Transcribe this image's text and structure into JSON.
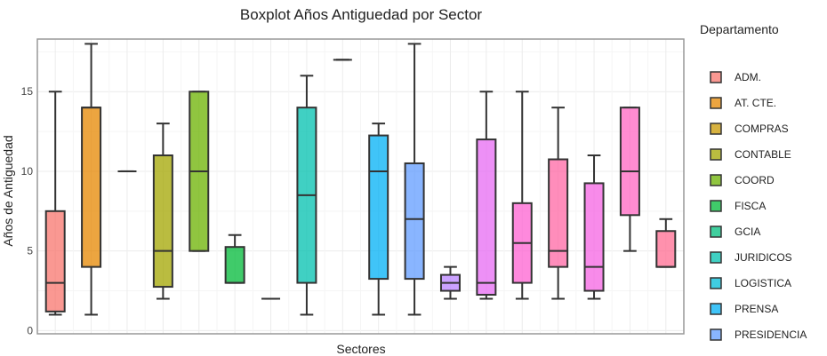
{
  "chart_data": {
    "type": "boxplot",
    "title": "Boxplot Años Antiguedad por Sector",
    "xlabel": "Sectores",
    "ylabel": "Años de Antiguedad",
    "ylim": [
      -0.2,
      18.3
    ],
    "yticks": [
      0,
      5,
      10,
      15
    ],
    "grid": true,
    "legend": {
      "title": "Departamento",
      "position": "right"
    },
    "series": [
      {
        "name": "ADM.",
        "color": "#F8766D",
        "min": 1,
        "q1": 1.2,
        "median": 3,
        "q3": 7.5,
        "max": 15
      },
      {
        "name": "AT. CTE.",
        "color": "#E58700",
        "min": 1,
        "q1": 4,
        "median": 14,
        "q3": 14,
        "max": 18
      },
      {
        "name": "COMPRAS",
        "color": "#C99800",
        "min": 10,
        "q1": 10,
        "median": 10,
        "q3": 10,
        "max": 10
      },
      {
        "name": "CONTABLE",
        "color": "#A3A500",
        "min": 2,
        "q1": 2.75,
        "median": 5,
        "q3": 11,
        "max": 13
      },
      {
        "name": "COORD",
        "color": "#6BB100",
        "min": 5,
        "q1": 5,
        "median": 10,
        "q3": 15,
        "max": 15
      },
      {
        "name": "FISCA",
        "color": "#00BA38",
        "min": 3,
        "q1": 3,
        "median": 3,
        "q3": 5.25,
        "max": 6
      },
      {
        "name": "GCIA",
        "color": "#00BF7D",
        "min": 2,
        "q1": 2,
        "median": 2,
        "q3": 2,
        "max": 2
      },
      {
        "name": "JURIDICOS",
        "color": "#00C0AF",
        "min": 1,
        "q1": 3,
        "median": 8.5,
        "q3": 14,
        "max": 16
      },
      {
        "name": "LOGISTICA",
        "color": "#00BCD8",
        "min": 17,
        "q1": 17,
        "median": 17,
        "q3": 17,
        "max": 17
      },
      {
        "name": "PRENSA",
        "color": "#00B0F6",
        "min": 1,
        "q1": 3.25,
        "median": 10,
        "q3": 12.25,
        "max": 13
      },
      {
        "name": "PRESIDENCIA",
        "color": "#619CFF",
        "min": 1,
        "q1": 3.25,
        "median": 7,
        "q3": 10.5,
        "max": 18
      },
      {
        "name": "",
        "color": "#B983FF",
        "min": 2,
        "q1": 2.5,
        "median": 3,
        "q3": 3.5,
        "max": 4
      },
      {
        "name": "",
        "color": "#E76BF3",
        "min": 2,
        "q1": 2.25,
        "median": 3,
        "q3": 12,
        "max": 15
      },
      {
        "name": "",
        "color": "#FD61D1",
        "min": 2,
        "q1": 3,
        "median": 5.5,
        "q3": 8,
        "max": 15
      },
      {
        "name": "",
        "color": "#FF67A4",
        "min": 2,
        "q1": 4,
        "median": 5,
        "q3": 10.75,
        "max": 14
      },
      {
        "name": "",
        "color": "#F564E3",
        "min": 2,
        "q1": 2.5,
        "median": 4,
        "q3": 9.25,
        "max": 11
      },
      {
        "name": "",
        "color": "#FF66C1",
        "min": 5,
        "q1": 7.25,
        "median": 10,
        "q3": 14,
        "max": 14
      },
      {
        "name": "",
        "color": "#FF6C91",
        "min": 4,
        "q1": 4,
        "median": 4,
        "q3": 6.25,
        "max": 7
      }
    ]
  }
}
